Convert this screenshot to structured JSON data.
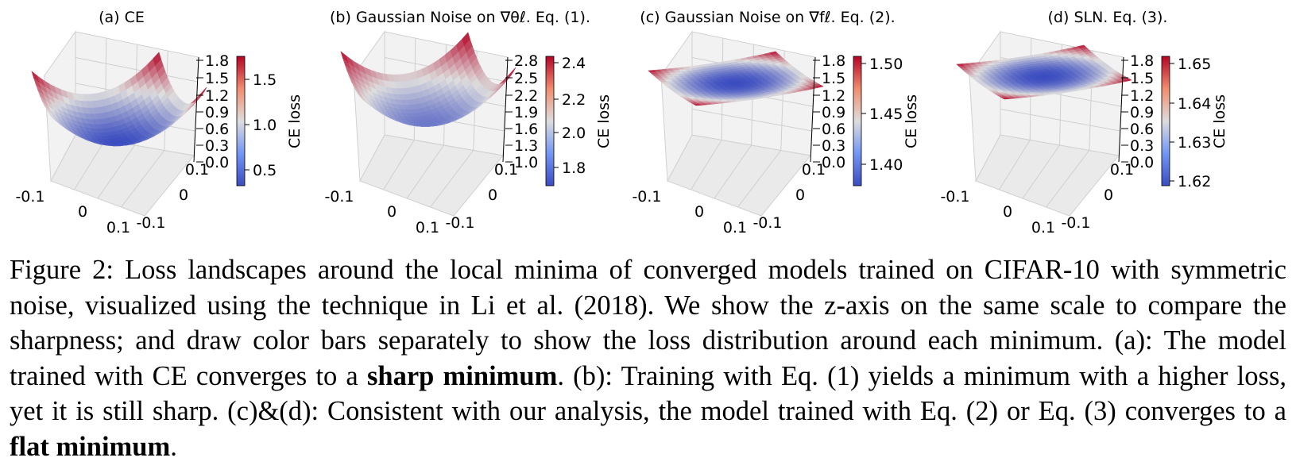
{
  "figure": {
    "panels": [
      {
        "id": "a",
        "title": "(a) CE",
        "zticks": [
          "1.8",
          "1.5",
          "1.2",
          "0.9",
          "0.6",
          "0.3",
          "0.0"
        ],
        "cbar_ticks": [
          "1.5",
          "1.0",
          "0.5"
        ],
        "cbar_label": "CE loss",
        "x_ticks": [
          "-0.1",
          "0",
          "0.1"
        ],
        "y_ticks": [
          "0.1",
          "0",
          "-0.1"
        ],
        "shape": "sharp bowl"
      },
      {
        "id": "b",
        "title": "(b) Gaussian Noise on ∇θℓ.  Eq. (1).",
        "zticks": [
          "2.8",
          "2.5",
          "2.2",
          "1.9",
          "1.6",
          "1.3",
          "1.0"
        ],
        "cbar_ticks": [
          "2.4",
          "2.2",
          "2.0",
          "1.8"
        ],
        "cbar_label": "CE loss",
        "x_ticks": [
          "-0.1",
          "0",
          "0.1"
        ],
        "y_ticks": [
          "0.1",
          "0",
          "-0.1"
        ],
        "shape": "sharp bowl, higher loss"
      },
      {
        "id": "c",
        "title": "(c) Gaussian Noise on ∇fℓ.  Eq. (2).",
        "zticks": [
          "1.8",
          "1.5",
          "1.2",
          "0.9",
          "0.6",
          "0.3",
          "0.0"
        ],
        "cbar_ticks": [
          "1.50",
          "1.45",
          "1.40"
        ],
        "cbar_label": "CE loss",
        "x_ticks": [
          "-0.1",
          "0",
          "0.1"
        ],
        "y_ticks": [
          "0.1",
          "0",
          "-0.1"
        ],
        "shape": "flat"
      },
      {
        "id": "d",
        "title": "(d) SLN. Eq. (3).",
        "zticks": [
          "1.8",
          "1.5",
          "1.2",
          "0.9",
          "0.6",
          "0.3",
          "0.0"
        ],
        "cbar_ticks": [
          "1.65",
          "1.64",
          "1.63",
          "1.62"
        ],
        "cbar_label": "CE loss",
        "x_ticks": [
          "-0.1",
          "0",
          "0.1"
        ],
        "y_ticks": [
          "0.1",
          "0",
          "-0.1"
        ],
        "shape": "flat"
      }
    ],
    "colors": {
      "low": "#3b4cc0",
      "mid": "#dddddd",
      "high": "#b40426"
    }
  },
  "caption": {
    "intro": "Figure 2: Loss landscapes around the local minima of converged models trained on CIFAR-10 with symmetric noise, visualized using the technique in  Li et al. (2018). We show the z-axis on the same scale to compare the sharpness; and draw color bars separately to show the loss distribution around each minimum.  (a): The model trained with CE converges to a ",
    "bold1": "sharp minimum",
    "mid": ".  (b): Training with Eq. (1) yields a minimum with a higher loss, yet it is still sharp.  (c)&(d): Consistent with our analysis, the model trained with Eq. (2) or Eq. (3) converges to a ",
    "bold2": "flat minimum",
    "end": "."
  }
}
